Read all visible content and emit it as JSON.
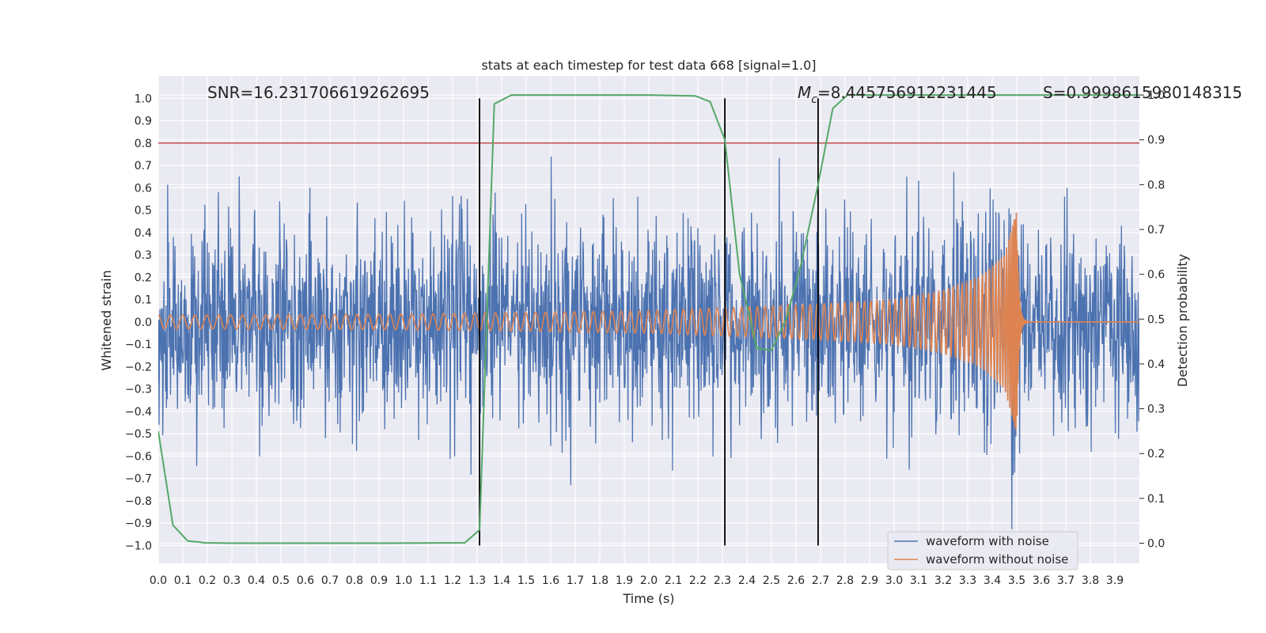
{
  "chart_data": {
    "type": "line",
    "title": "stats at each timestep for test data 668 [signal=1.0]",
    "xlabel": "Time (s)",
    "ylabel": "Whitened strain",
    "y2label": "Detection probability",
    "xlim": [
      0.0,
      4.0
    ],
    "ylim": [
      -1.08,
      1.1
    ],
    "y2lim": [
      -0.045,
      1.0425
    ],
    "x_ticks": [
      "0.0",
      "0.1",
      "0.2",
      "0.3",
      "0.4",
      "0.5",
      "0.6",
      "0.7",
      "0.8",
      "0.9",
      "1.0",
      "1.1",
      "1.2",
      "1.3",
      "1.4",
      "1.5",
      "1.6",
      "1.7",
      "1.8",
      "1.9",
      "2.0",
      "2.1",
      "2.2",
      "2.3",
      "2.4",
      "2.5",
      "2.6",
      "2.7",
      "2.8",
      "2.9",
      "3.0",
      "3.1",
      "3.2",
      "3.3",
      "3.4",
      "3.5",
      "3.6",
      "3.7",
      "3.8",
      "3.9"
    ],
    "y_ticks": [
      "1.0",
      "0.9",
      "0.8",
      "0.7",
      "0.6",
      "0.5",
      "0.4",
      "0.3",
      "0.2",
      "0.1",
      "0.0",
      "−0.1",
      "−0.2",
      "−0.3",
      "−0.4",
      "−0.5",
      "−0.6",
      "−0.7",
      "−0.8",
      "−0.9",
      "−1.0"
    ],
    "y2_ticks": [
      "1.0",
      "0.9",
      "0.8",
      "0.7",
      "0.6",
      "0.5",
      "0.4",
      "0.3",
      "0.2",
      "0.1",
      "0.0"
    ],
    "grid": true,
    "legend_position": "lower-right",
    "threshold_y": 0.8,
    "threshold_color": "#c44e52",
    "vertical_lines_x": [
      1.31,
      2.31,
      2.69
    ],
    "annotations": {
      "snr": "SNR=16.231706619262695",
      "mc_prefix": "M",
      "mc_sub": "c",
      "mc_value": "=8.445756912231445",
      "s": "S=0.9998615980148315"
    },
    "series": [
      {
        "name": "waveform with noise",
        "color": "#4c72b0",
        "kind": "noise",
        "std": 0.22
      },
      {
        "name": "waveform without noise",
        "color": "#dd8452",
        "kind": "chirp",
        "merger_time": 3.5,
        "envelope": [
          [
            0.0,
            0.03
          ],
          [
            1.0,
            0.035
          ],
          [
            2.0,
            0.05
          ],
          [
            2.7,
            0.08
          ],
          [
            3.0,
            0.1
          ],
          [
            3.2,
            0.14
          ],
          [
            3.35,
            0.2
          ],
          [
            3.45,
            0.3
          ],
          [
            3.5,
            0.5
          ]
        ]
      },
      {
        "name": "Detection probability",
        "color": "#55a868",
        "kind": "probability",
        "x": [
          0.0,
          0.06,
          0.12,
          0.19,
          0.31,
          0.62,
          0.94,
          1.25,
          1.31,
          1.37,
          1.44,
          1.56,
          1.75,
          2.0,
          2.19,
          2.25,
          2.31,
          2.37,
          2.44,
          2.5,
          2.56,
          2.62,
          2.69,
          2.75,
          2.81,
          2.9,
          3.0,
          3.3,
          3.6,
          4.0
        ],
        "y": [
          0.25,
          0.04,
          0.005,
          0.001,
          0.0,
          0.0,
          0.0,
          0.001,
          0.03,
          0.98,
          1.0,
          1.0,
          1.0,
          1.0,
          0.998,
          0.985,
          0.9,
          0.6,
          0.435,
          0.43,
          0.5,
          0.62,
          0.8,
          0.97,
          1.0,
          1.0,
          1.0,
          1.0,
          1.0,
          1.0
        ]
      }
    ]
  }
}
